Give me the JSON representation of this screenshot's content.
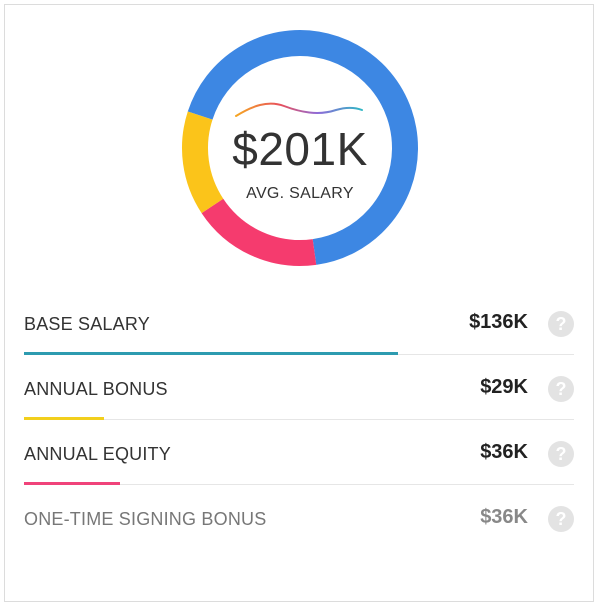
{
  "summary": {
    "amount": "$201K",
    "label": "AVG. SALARY"
  },
  "donut": {
    "segments": [
      {
        "name": "base",
        "fraction": 0.678,
        "color": "#3d87e3"
      },
      {
        "name": "equity",
        "fraction": 0.179,
        "color": "#f53b6e"
      },
      {
        "name": "bonus",
        "fraction": 0.143,
        "color": "#fbc41a"
      }
    ]
  },
  "rows": [
    {
      "label": "BASE SALARY",
      "value": "$136K",
      "bar_fraction": 0.68,
      "bar_color": "#2d9bb0",
      "muted": false
    },
    {
      "label": "ANNUAL BONUS",
      "value": "$29K",
      "bar_fraction": 0.145,
      "bar_color": "#f2cf1c",
      "muted": false
    },
    {
      "label": "ANNUAL EQUITY",
      "value": "$36K",
      "bar_fraction": 0.175,
      "bar_color": "#f0437a",
      "muted": false
    },
    {
      "label": "ONE-TIME SIGNING BONUS",
      "value": "$36K",
      "bar_fraction": 0,
      "bar_color": "#cccccc",
      "muted": true
    }
  ],
  "help_icon_glyph": "?"
}
